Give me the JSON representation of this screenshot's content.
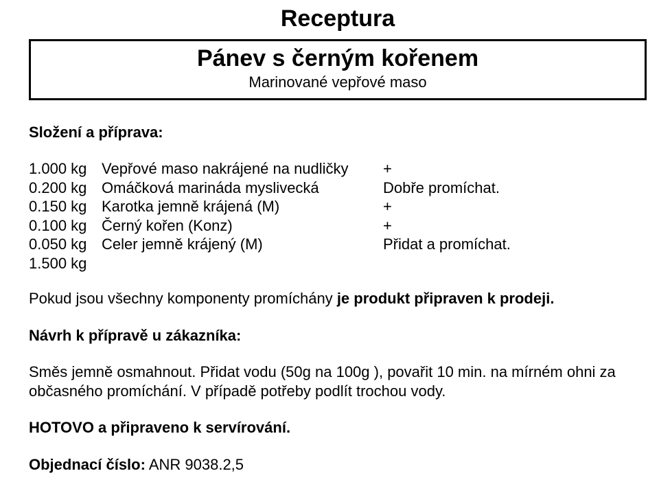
{
  "title": "Receptura",
  "recipe": {
    "name": "Pánev s černým kořenem",
    "subtitle": "Marinované vepřové maso"
  },
  "section_heading": "Složení a příprava:",
  "ingredients": [
    {
      "qty": "1.000 kg",
      "name": "Vepřové maso nakrájené na nudličky",
      "note": "+"
    },
    {
      "qty": "0.200 kg",
      "name": "Omáčková marináda myslivecká",
      "note": "Dobře promíchat."
    },
    {
      "qty": "0.150 kg",
      "name": "Karotka jemně krájená (M)",
      "note": "+"
    },
    {
      "qty": "0.100 kg",
      "name": "Černý kořen (Konz)",
      "note": "+"
    },
    {
      "qty": "0.050 kg",
      "name": "Celer jemně krájený (M)",
      "note": " Přidat a promíchat."
    },
    {
      "qty": "1.500 kg",
      "name": "",
      "note": ""
    }
  ],
  "mix_line": {
    "prefix": "Pokud jsou všechny komponenty promíchány ",
    "bold": "je produkt připraven k prodeji."
  },
  "prep_heading": "Návrh k přípravě u zákazníka:",
  "prep_text": "Směs  jemně  osmahnout.  Přidat  vodu  (50g na 100g ),  povařit 10 min.  na mírném ohni  za občasného  promíchání.  V případě potřeby podlít trochou vody.",
  "ready_line": "HOTOVO a připraveno k servírování.",
  "order": {
    "label": "Objednací číslo:",
    "value": " ANR  9038.2,5"
  }
}
